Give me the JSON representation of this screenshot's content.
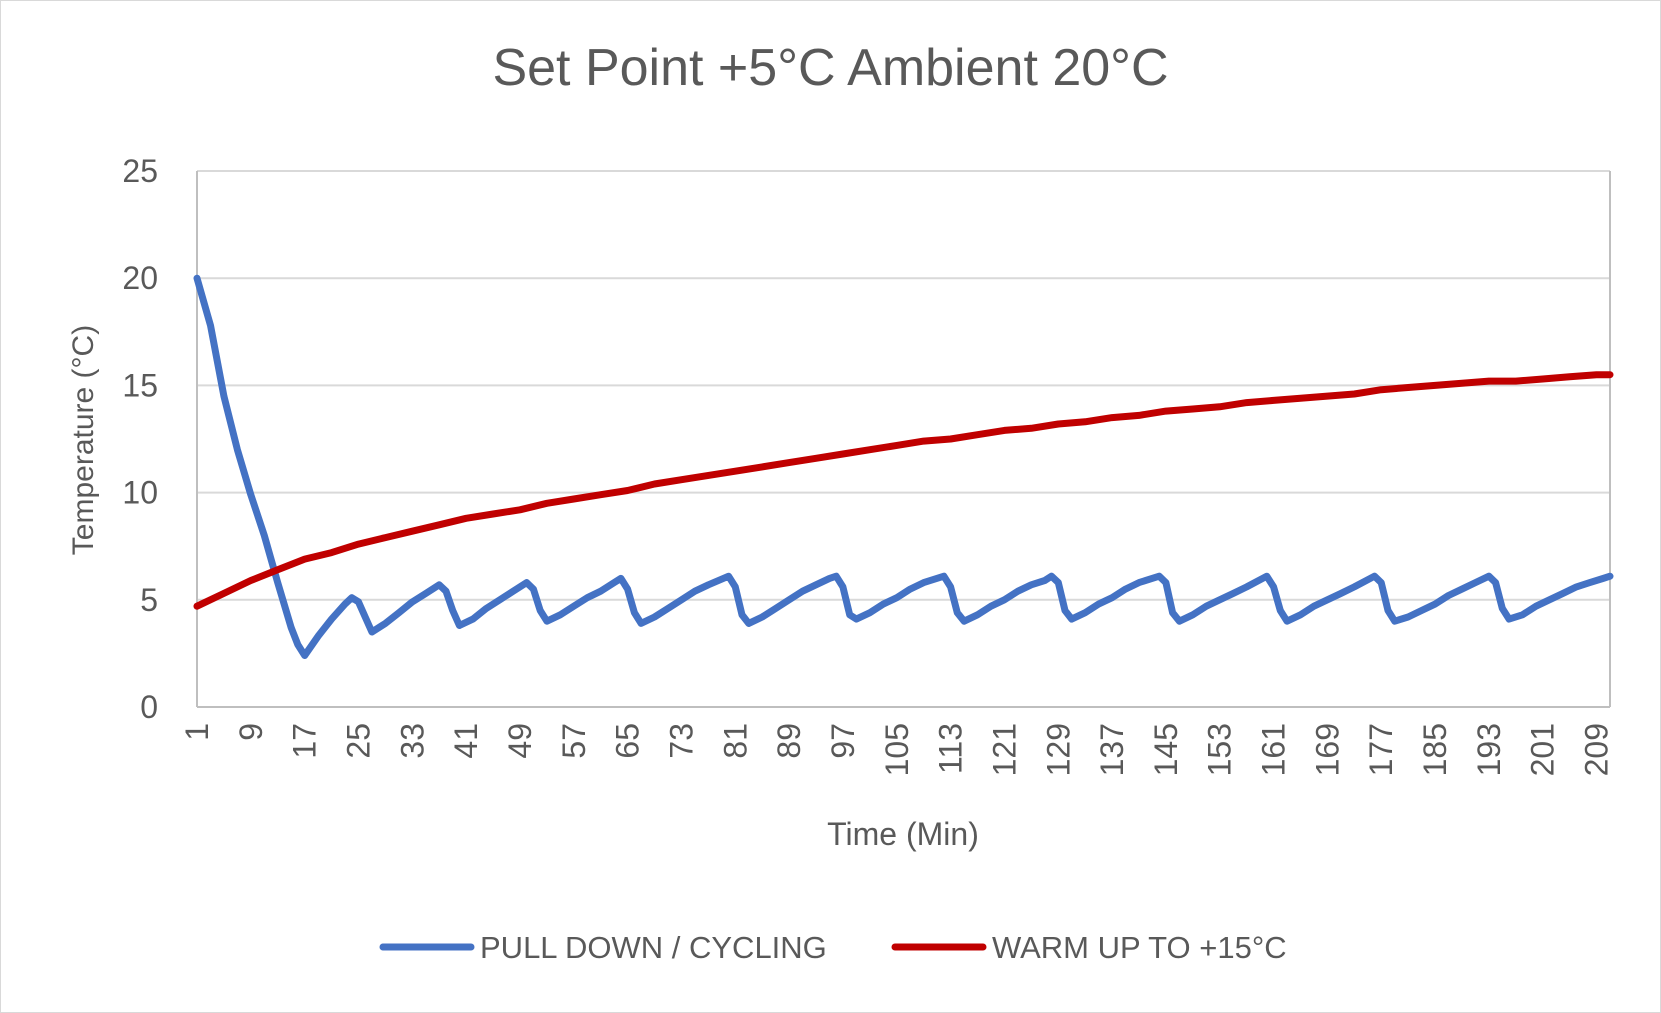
{
  "chart_data": {
    "type": "line",
    "title": "Set Point +5°C Ambient 20°C",
    "xlabel": "Time (Min)",
    "ylabel": "Temperature (°C)",
    "ylim": [
      0,
      25
    ],
    "yticks": [
      "0",
      "5",
      "10",
      "15",
      "20",
      "25"
    ],
    "xlim": [
      1,
      211
    ],
    "xticks": [
      "1",
      "9",
      "17",
      "25",
      "33",
      "41",
      "49",
      "57",
      "65",
      "73",
      "81",
      "89",
      "97",
      "105",
      "113",
      "121",
      "129",
      "137",
      "145",
      "153",
      "161",
      "169",
      "177",
      "185",
      "193",
      "201",
      "209"
    ],
    "grid": true,
    "legend_position": "bottom",
    "series": [
      {
        "name": "PULL DOWN / CYCLING",
        "color": "#4472C4",
        "points": [
          [
            1,
            20.0
          ],
          [
            3,
            17.8
          ],
          [
            5,
            14.5
          ],
          [
            7,
            12.0
          ],
          [
            9,
            9.9
          ],
          [
            11,
            8.0
          ],
          [
            13,
            5.8
          ],
          [
            15,
            3.7
          ],
          [
            16,
            2.9
          ],
          [
            17,
            2.4
          ],
          [
            19,
            3.3
          ],
          [
            21,
            4.1
          ],
          [
            23,
            4.8
          ],
          [
            24,
            5.1
          ],
          [
            25,
            4.9
          ],
          [
            26,
            4.2
          ],
          [
            27,
            3.5
          ],
          [
            29,
            3.9
          ],
          [
            31,
            4.4
          ],
          [
            33,
            4.9
          ],
          [
            35,
            5.3
          ],
          [
            37,
            5.7
          ],
          [
            38,
            5.4
          ],
          [
            39,
            4.5
          ],
          [
            40,
            3.8
          ],
          [
            42,
            4.1
          ],
          [
            44,
            4.6
          ],
          [
            46,
            5.0
          ],
          [
            48,
            5.4
          ],
          [
            50,
            5.8
          ],
          [
            51,
            5.5
          ],
          [
            52,
            4.5
          ],
          [
            53,
            4.0
          ],
          [
            55,
            4.3
          ],
          [
            57,
            4.7
          ],
          [
            59,
            5.1
          ],
          [
            61,
            5.4
          ],
          [
            63,
            5.8
          ],
          [
            64,
            6.0
          ],
          [
            65,
            5.5
          ],
          [
            66,
            4.4
          ],
          [
            67,
            3.9
          ],
          [
            69,
            4.2
          ],
          [
            71,
            4.6
          ],
          [
            73,
            5.0
          ],
          [
            75,
            5.4
          ],
          [
            77,
            5.7
          ],
          [
            80,
            6.1
          ],
          [
            81,
            5.6
          ],
          [
            82,
            4.3
          ],
          [
            83,
            3.9
          ],
          [
            85,
            4.2
          ],
          [
            87,
            4.6
          ],
          [
            89,
            5.0
          ],
          [
            91,
            5.4
          ],
          [
            93,
            5.7
          ],
          [
            95,
            6.0
          ],
          [
            96,
            6.1
          ],
          [
            97,
            5.6
          ],
          [
            98,
            4.3
          ],
          [
            99,
            4.1
          ],
          [
            101,
            4.4
          ],
          [
            103,
            4.8
          ],
          [
            105,
            5.1
          ],
          [
            107,
            5.5
          ],
          [
            109,
            5.8
          ],
          [
            112,
            6.1
          ],
          [
            113,
            5.6
          ],
          [
            114,
            4.4
          ],
          [
            115,
            4.0
          ],
          [
            117,
            4.3
          ],
          [
            119,
            4.7
          ],
          [
            121,
            5.0
          ],
          [
            123,
            5.4
          ],
          [
            125,
            5.7
          ],
          [
            127,
            5.9
          ],
          [
            128,
            6.1
          ],
          [
            129,
            5.8
          ],
          [
            130,
            4.5
          ],
          [
            131,
            4.1
          ],
          [
            133,
            4.4
          ],
          [
            135,
            4.8
          ],
          [
            137,
            5.1
          ],
          [
            139,
            5.5
          ],
          [
            141,
            5.8
          ],
          [
            144,
            6.1
          ],
          [
            145,
            5.8
          ],
          [
            146,
            4.4
          ],
          [
            147,
            4.0
          ],
          [
            149,
            4.3
          ],
          [
            151,
            4.7
          ],
          [
            153,
            5.0
          ],
          [
            155,
            5.3
          ],
          [
            157,
            5.6
          ],
          [
            160,
            6.1
          ],
          [
            161,
            5.6
          ],
          [
            162,
            4.5
          ],
          [
            163,
            4.0
          ],
          [
            165,
            4.3
          ],
          [
            167,
            4.7
          ],
          [
            169,
            5.0
          ],
          [
            171,
            5.3
          ],
          [
            173,
            5.6
          ],
          [
            176,
            6.1
          ],
          [
            177,
            5.8
          ],
          [
            178,
            4.5
          ],
          [
            179,
            4.0
          ],
          [
            181,
            4.2
          ],
          [
            183,
            4.5
          ],
          [
            185,
            4.8
          ],
          [
            187,
            5.2
          ],
          [
            189,
            5.5
          ],
          [
            191,
            5.8
          ],
          [
            193,
            6.1
          ],
          [
            194,
            5.8
          ],
          [
            195,
            4.6
          ],
          [
            196,
            4.1
          ],
          [
            198,
            4.3
          ],
          [
            200,
            4.7
          ],
          [
            202,
            5.0
          ],
          [
            204,
            5.3
          ],
          [
            206,
            5.6
          ],
          [
            208,
            5.8
          ],
          [
            210,
            6.0
          ],
          [
            211,
            6.1
          ]
        ]
      },
      {
        "name": "WARM UP TO +15°C",
        "color": "#C00000",
        "points": [
          [
            1,
            4.7
          ],
          [
            5,
            5.3
          ],
          [
            9,
            5.9
          ],
          [
            13,
            6.4
          ],
          [
            17,
            6.9
          ],
          [
            21,
            7.2
          ],
          [
            25,
            7.6
          ],
          [
            29,
            7.9
          ],
          [
            33,
            8.2
          ],
          [
            37,
            8.5
          ],
          [
            41,
            8.8
          ],
          [
            45,
            9.0
          ],
          [
            49,
            9.2
          ],
          [
            53,
            9.5
          ],
          [
            57,
            9.7
          ],
          [
            61,
            9.9
          ],
          [
            65,
            10.1
          ],
          [
            69,
            10.4
          ],
          [
            73,
            10.6
          ],
          [
            77,
            10.8
          ],
          [
            81,
            11.0
          ],
          [
            85,
            11.2
          ],
          [
            89,
            11.4
          ],
          [
            93,
            11.6
          ],
          [
            97,
            11.8
          ],
          [
            101,
            12.0
          ],
          [
            105,
            12.2
          ],
          [
            109,
            12.4
          ],
          [
            113,
            12.5
          ],
          [
            117,
            12.7
          ],
          [
            121,
            12.9
          ],
          [
            125,
            13.0
          ],
          [
            129,
            13.2
          ],
          [
            133,
            13.3
          ],
          [
            137,
            13.5
          ],
          [
            141,
            13.6
          ],
          [
            145,
            13.8
          ],
          [
            149,
            13.9
          ],
          [
            153,
            14.0
          ],
          [
            157,
            14.2
          ],
          [
            161,
            14.3
          ],
          [
            165,
            14.4
          ],
          [
            169,
            14.5
          ],
          [
            173,
            14.6
          ],
          [
            177,
            14.8
          ],
          [
            181,
            14.9
          ],
          [
            185,
            15.0
          ],
          [
            189,
            15.1
          ],
          [
            193,
            15.2
          ],
          [
            197,
            15.2
          ],
          [
            201,
            15.3
          ],
          [
            205,
            15.4
          ],
          [
            209,
            15.5
          ],
          [
            211,
            15.5
          ]
        ]
      }
    ]
  }
}
